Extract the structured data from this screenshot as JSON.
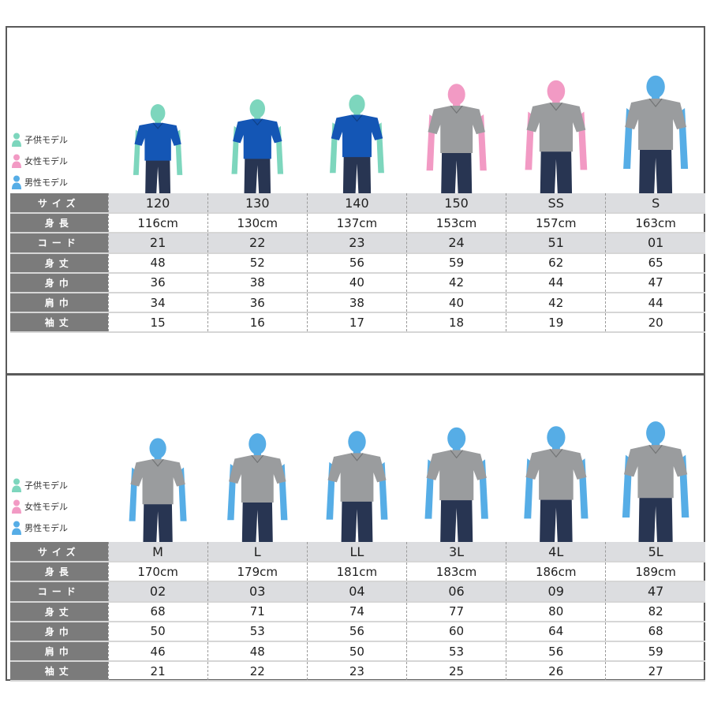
{
  "legend": [
    {
      "icon": "child-figure-icon",
      "label": "子供モデル",
      "color": "#7dd6bd"
    },
    {
      "icon": "female-figure-icon",
      "label": "女性モデル",
      "color": "#f29ac4"
    },
    {
      "icon": "male-figure-icon",
      "label": "男性モデル",
      "color": "#56ade6"
    }
  ],
  "colors": {
    "child": "#7dd6bd",
    "female": "#f29ac4",
    "male": "#56ade6",
    "shirt_blue": "#1456b5",
    "shirt_gray": "#9a9c9e",
    "pants": "#283552",
    "row_header_bg": "#7b7b7b",
    "shaded_row_bg": "#dcdde0",
    "kids_size_text": "#2fa08c",
    "men_size_text": "#2a8fc7"
  },
  "row_labels": {
    "size": "サイズ",
    "height": "身長",
    "code": "コード",
    "length": "身丈",
    "chest": "身巾",
    "shoulder": "肩巾",
    "sleeve": "袖丈"
  },
  "tables": [
    {
      "models": [
        "child",
        "child",
        "child",
        "female",
        "female",
        "male"
      ],
      "shirts": [
        "blue",
        "blue",
        "blue",
        "gray",
        "gray",
        "gray"
      ],
      "size": [
        "120",
        "130",
        "140",
        "150",
        "SS",
        "S"
      ],
      "height": [
        "116cm",
        "130cm",
        "137cm",
        "153cm",
        "157cm",
        "163cm"
      ],
      "code": [
        "21",
        "22",
        "23",
        "24",
        "51",
        "01"
      ],
      "length": [
        "48",
        "52",
        "56",
        "59",
        "62",
        "65"
      ],
      "chest": [
        "36",
        "38",
        "40",
        "42",
        "44",
        "47"
      ],
      "shoulder": [
        "34",
        "36",
        "38",
        "40",
        "42",
        "44"
      ],
      "sleeve": [
        "15",
        "16",
        "17",
        "18",
        "19",
        "20"
      ]
    },
    {
      "models": [
        "male",
        "male",
        "male",
        "male",
        "male",
        "male"
      ],
      "shirts": [
        "gray",
        "gray",
        "gray",
        "gray",
        "gray",
        "gray"
      ],
      "size": [
        "M",
        "L",
        "LL",
        "3L",
        "4L",
        "5L"
      ],
      "height": [
        "170cm",
        "179cm",
        "181cm",
        "183cm",
        "186cm",
        "189cm"
      ],
      "code": [
        "02",
        "03",
        "04",
        "06",
        "09",
        "47"
      ],
      "length": [
        "68",
        "71",
        "74",
        "77",
        "80",
        "82"
      ],
      "chest": [
        "50",
        "53",
        "56",
        "60",
        "64",
        "68"
      ],
      "shoulder": [
        "46",
        "48",
        "50",
        "53",
        "56",
        "59"
      ],
      "sleeve": [
        "21",
        "22",
        "23",
        "25",
        "26",
        "27"
      ]
    }
  ]
}
